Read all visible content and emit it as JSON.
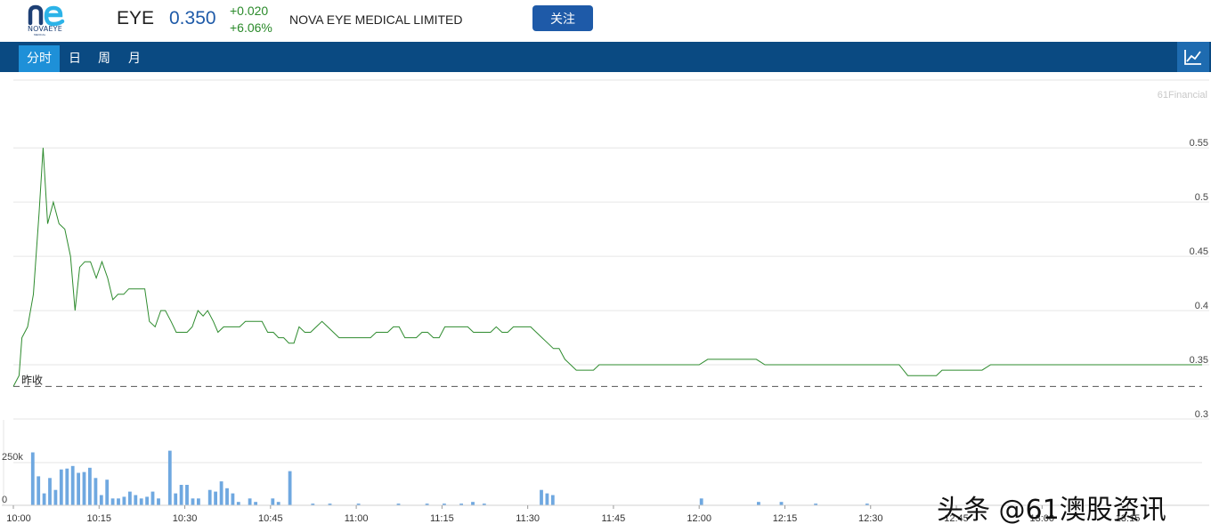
{
  "header": {
    "logo_text": "NOVAEYE",
    "logo_sub": "MEDICAL",
    "ticker": "EYE",
    "price": "0.350",
    "change_abs": "+0.020",
    "change_pct": "+6.06%",
    "company": "NOVA EYE MEDICAL LIMITED",
    "follow_label": "关注",
    "up_color": "#2a8a2a",
    "price_color": "#1e5aa8"
  },
  "tabs": [
    {
      "label": "分时",
      "active": true
    },
    {
      "label": "日",
      "active": false
    },
    {
      "label": "周",
      "active": false
    },
    {
      "label": "月",
      "active": false
    }
  ],
  "chart_type_icon": "line-chart-icon",
  "source_label": "61Financial",
  "prev_close_label": "昨收",
  "watermark": "头条 @61澳股资讯",
  "chart_data": {
    "type": "line",
    "price": {
      "ylim": [
        0.3,
        0.56
      ],
      "yticks": [
        0.35,
        0.4,
        0.45,
        0.5,
        0.55
      ],
      "ytick_labels": [
        "0.35",
        "0.4",
        "0.45",
        "0.5",
        "0.55"
      ],
      "bottom_tick_label": "0.3",
      "prev_close": 0.33,
      "line_color": "#2e8b2e",
      "points": [
        [
          0.0,
          0.33
        ],
        [
          1.0,
          0.34
        ],
        [
          1.5,
          0.375
        ],
        [
          2.5,
          0.385
        ],
        [
          3.5,
          0.415
        ],
        [
          4.5,
          0.49
        ],
        [
          5.2,
          0.55
        ],
        [
          6.0,
          0.48
        ],
        [
          7.0,
          0.5
        ],
        [
          8.0,
          0.48
        ],
        [
          9.0,
          0.475
        ],
        [
          10.0,
          0.45
        ],
        [
          10.8,
          0.4
        ],
        [
          11.6,
          0.44
        ],
        [
          12.5,
          0.445
        ],
        [
          13.5,
          0.445
        ],
        [
          14.5,
          0.43
        ],
        [
          15.5,
          0.445
        ],
        [
          16.5,
          0.43
        ],
        [
          17.4,
          0.41
        ],
        [
          18.3,
          0.415
        ],
        [
          19.3,
          0.415
        ],
        [
          20.2,
          0.42
        ],
        [
          21.0,
          0.42
        ],
        [
          22.0,
          0.42
        ],
        [
          23.0,
          0.42
        ],
        [
          23.8,
          0.39
        ],
        [
          24.8,
          0.385
        ],
        [
          25.8,
          0.4
        ],
        [
          26.6,
          0.4
        ],
        [
          27.6,
          0.39
        ],
        [
          28.5,
          0.38
        ],
        [
          29.5,
          0.38
        ],
        [
          30.4,
          0.38
        ],
        [
          31.3,
          0.385
        ],
        [
          32.3,
          0.4
        ],
        [
          33.2,
          0.395
        ],
        [
          34.0,
          0.4
        ],
        [
          35.0,
          0.39
        ],
        [
          35.8,
          0.38
        ],
        [
          36.8,
          0.385
        ],
        [
          38.5,
          0.385
        ],
        [
          39.6,
          0.385
        ],
        [
          40.6,
          0.39
        ],
        [
          42.5,
          0.39
        ],
        [
          43.5,
          0.39
        ],
        [
          44.5,
          0.38
        ],
        [
          45.5,
          0.38
        ],
        [
          46.4,
          0.375
        ],
        [
          47.3,
          0.375
        ],
        [
          48.2,
          0.37
        ],
        [
          49.1,
          0.37
        ],
        [
          50.0,
          0.385
        ],
        [
          51.0,
          0.38
        ],
        [
          52.0,
          0.38
        ],
        [
          53.0,
          0.385
        ],
        [
          54.0,
          0.39
        ],
        [
          55.0,
          0.385
        ],
        [
          56.0,
          0.38
        ],
        [
          57.0,
          0.375
        ],
        [
          58.0,
          0.375
        ],
        [
          59.0,
          0.375
        ],
        [
          61.5,
          0.375
        ],
        [
          62.5,
          0.375
        ],
        [
          63.5,
          0.38
        ],
        [
          64.5,
          0.38
        ],
        [
          65.5,
          0.38
        ],
        [
          66.5,
          0.385
        ],
        [
          67.5,
          0.385
        ],
        [
          68.5,
          0.375
        ],
        [
          69.5,
          0.375
        ],
        [
          70.5,
          0.375
        ],
        [
          71.5,
          0.38
        ],
        [
          72.5,
          0.38
        ],
        [
          73.5,
          0.375
        ],
        [
          74.5,
          0.375
        ],
        [
          75.5,
          0.385
        ],
        [
          76.5,
          0.385
        ],
        [
          78.5,
          0.385
        ],
        [
          79.5,
          0.385
        ],
        [
          80.5,
          0.38
        ],
        [
          81.5,
          0.38
        ],
        [
          83.5,
          0.38
        ],
        [
          84.5,
          0.385
        ],
        [
          85.5,
          0.38
        ],
        [
          86.5,
          0.38
        ],
        [
          87.5,
          0.385
        ],
        [
          88.5,
          0.385
        ],
        [
          90.5,
          0.385
        ],
        [
          91.5,
          0.38
        ],
        [
          92.5,
          0.375
        ],
        [
          93.5,
          0.37
        ],
        [
          94.5,
          0.365
        ],
        [
          95.5,
          0.365
        ],
        [
          96.5,
          0.355
        ],
        [
          97.5,
          0.35
        ],
        [
          98.5,
          0.345
        ],
        [
          100.5,
          0.345
        ],
        [
          101.5,
          0.345
        ],
        [
          102.5,
          0.35
        ],
        [
          104.5,
          0.35
        ],
        [
          120.0,
          0.35
        ],
        [
          121.5,
          0.355
        ],
        [
          130.0,
          0.355
        ],
        [
          131.5,
          0.35
        ],
        [
          155.0,
          0.35
        ],
        [
          156.5,
          0.34
        ],
        [
          161.5,
          0.34
        ],
        [
          162.5,
          0.345
        ],
        [
          169.5,
          0.345
        ],
        [
          171.0,
          0.35
        ],
        [
          208.0,
          0.35
        ]
      ]
    },
    "volume": {
      "ylim": [
        0,
        500000
      ],
      "yticks": [
        0,
        250000
      ],
      "ytick_labels": [
        "0",
        "250k"
      ],
      "bar_color": "#6fa8e0",
      "bars": [
        [
          3,
          310000
        ],
        [
          4,
          170000
        ],
        [
          5,
          70000
        ],
        [
          6,
          160000
        ],
        [
          7,
          90000
        ],
        [
          8,
          210000
        ],
        [
          9,
          215000
        ],
        [
          10,
          230000
        ],
        [
          11,
          190000
        ],
        [
          12,
          195000
        ],
        [
          13,
          220000
        ],
        [
          14,
          160000
        ],
        [
          15,
          60000
        ],
        [
          16,
          150000
        ],
        [
          17,
          40000
        ],
        [
          18,
          40000
        ],
        [
          19,
          50000
        ],
        [
          20,
          80000
        ],
        [
          21,
          60000
        ],
        [
          22,
          40000
        ],
        [
          23,
          50000
        ],
        [
          24,
          80000
        ],
        [
          25,
          40000
        ],
        [
          27,
          320000
        ],
        [
          28,
          70000
        ],
        [
          29,
          120000
        ],
        [
          30,
          120000
        ],
        [
          31,
          40000
        ],
        [
          32,
          40000
        ],
        [
          34,
          90000
        ],
        [
          35,
          80000
        ],
        [
          36,
          140000
        ],
        [
          37,
          100000
        ],
        [
          38,
          70000
        ],
        [
          39,
          20000
        ],
        [
          41,
          40000
        ],
        [
          42,
          20000
        ],
        [
          45,
          40000
        ],
        [
          46,
          20000
        ],
        [
          48,
          200000
        ],
        [
          52,
          10000
        ],
        [
          55,
          10000
        ],
        [
          60,
          10000
        ],
        [
          67,
          10000
        ],
        [
          72,
          10000
        ],
        [
          75,
          10000
        ],
        [
          78,
          10000
        ],
        [
          80,
          20000
        ],
        [
          82,
          10000
        ],
        [
          92,
          90000
        ],
        [
          93,
          70000
        ],
        [
          94,
          60000
        ],
        [
          120,
          40000
        ],
        [
          130,
          20000
        ],
        [
          134,
          20000
        ],
        [
          140,
          10000
        ],
        [
          149,
          10000
        ]
      ]
    },
    "time_axis": {
      "xlim": [
        0,
        208
      ],
      "ticks": [
        0,
        15,
        30,
        45,
        60,
        75,
        90,
        105,
        120,
        135,
        150,
        165,
        180,
        195
      ],
      "tick_labels": [
        "10:00",
        "10:15",
        "10:30",
        "10:45",
        "11:00",
        "11:15",
        "11:30",
        "11:45",
        "12:00",
        "12:15",
        "12:30",
        "12:45",
        "13:00",
        "13:15"
      ],
      "unit": "minutes"
    },
    "grid": true
  }
}
